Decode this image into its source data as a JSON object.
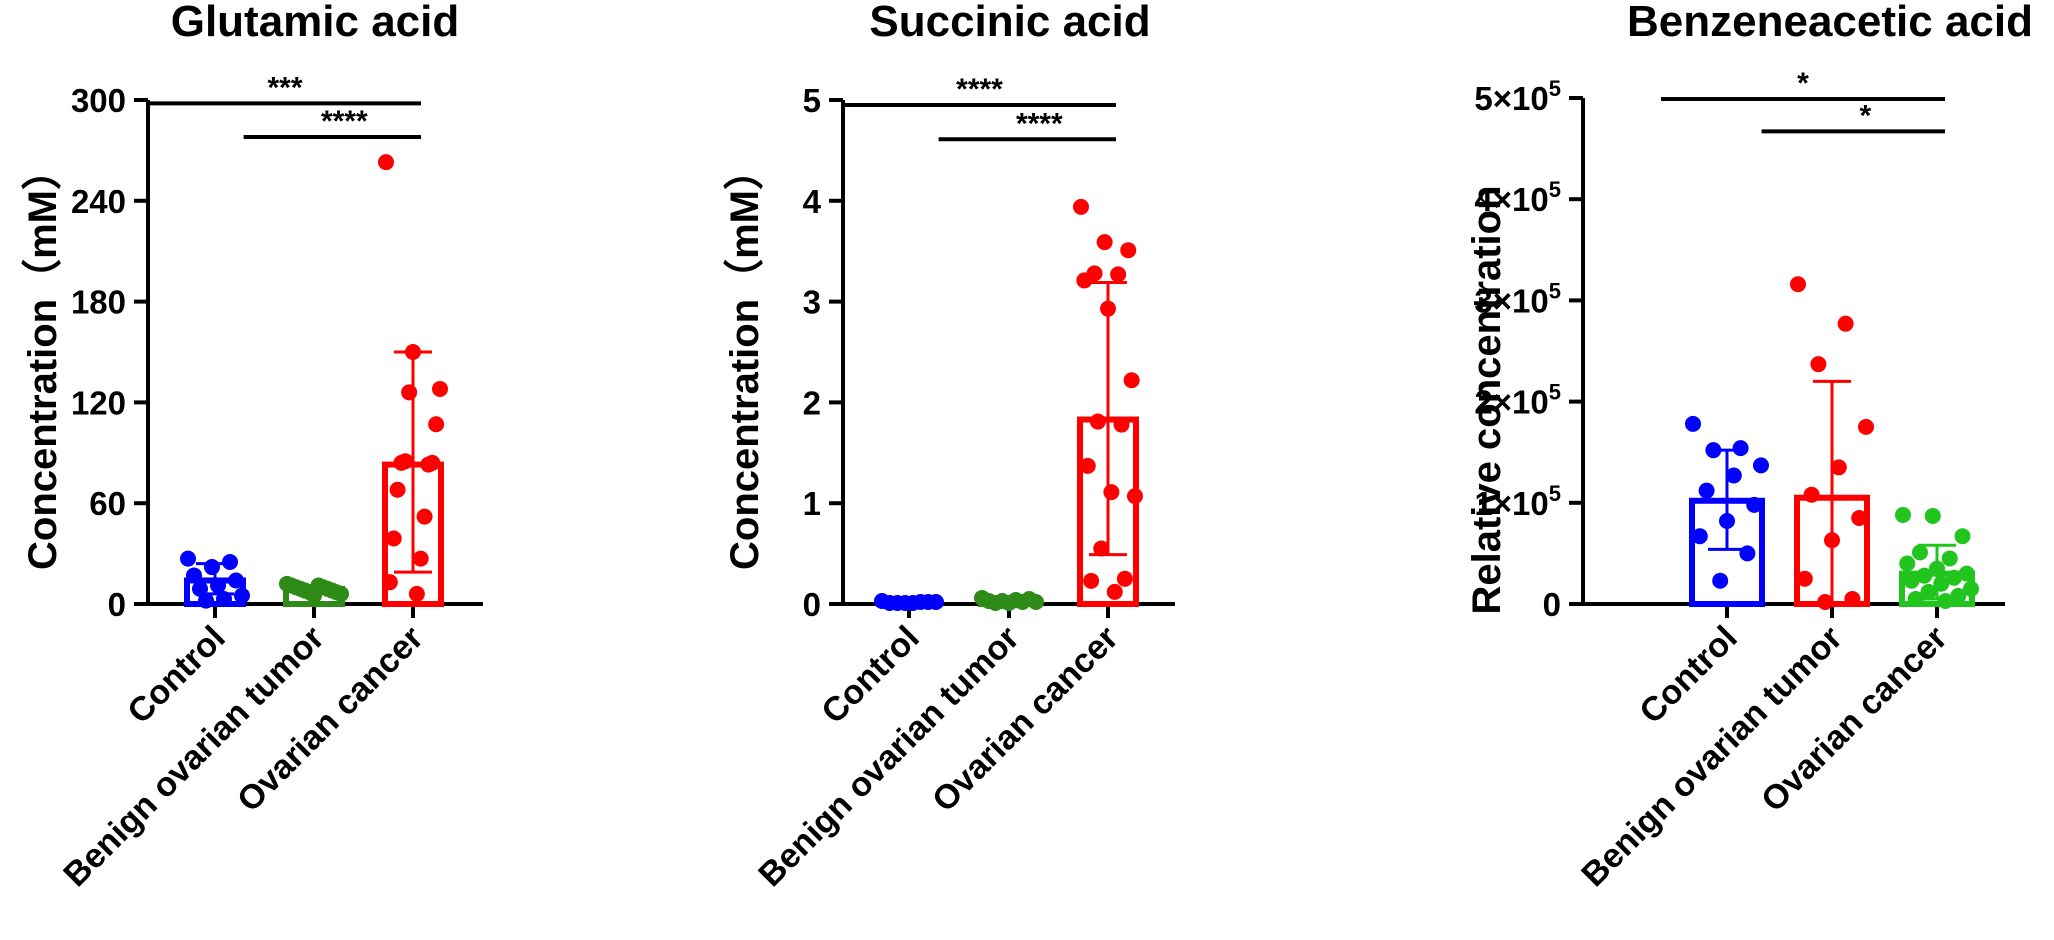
{
  "chart_data": [
    {
      "type": "bar",
      "title": "Glutamic acid",
      "ylabel": "Concentration（mM）",
      "xlabel": "",
      "ylim": [
        0,
        300
      ],
      "yticks": [
        {
          "value": 0,
          "label": "0"
        },
        {
          "value": 60,
          "label": "60"
        },
        {
          "value": 120,
          "label": "120"
        },
        {
          "value": 180,
          "label": "180"
        },
        {
          "value": 240,
          "label": "240"
        },
        {
          "value": 300,
          "label": "300"
        }
      ],
      "categories": [
        "Control",
        "Benign ovarian tumor",
        "Ovarian cancer"
      ],
      "colors": [
        "#0000ff",
        "#2e8b18",
        "#ff0000"
      ],
      "bar_style": [
        "outline",
        "outline",
        "outline"
      ],
      "means": [
        14,
        9,
        83
      ],
      "sd_upper": [
        24,
        11,
        150
      ],
      "sd_lower": [
        6,
        7,
        19
      ],
      "points": [
        [
          27,
          25,
          22,
          17,
          14,
          11,
          9,
          5,
          3,
          2
        ],
        [
          12,
          11,
          11,
          10,
          10,
          9,
          9,
          8,
          8,
          7,
          7,
          6,
          5
        ],
        [
          263,
          150,
          128,
          126,
          107,
          85,
          84,
          84,
          83,
          68,
          52,
          39,
          27,
          13,
          6
        ]
      ],
      "significance": [
        {
          "from": 0,
          "to": 2,
          "y": 298,
          "label": "***"
        },
        {
          "from": 1,
          "to": 2,
          "y": 278,
          "label": "****"
        }
      ]
    },
    {
      "type": "bar",
      "title": "Succinic acid",
      "ylabel": "Concentration（mM）",
      "xlabel": "",
      "ylim": [
        0,
        5
      ],
      "yticks": [
        {
          "value": 0,
          "label": "0"
        },
        {
          "value": 1,
          "label": "1"
        },
        {
          "value": 2,
          "label": "2"
        },
        {
          "value": 3,
          "label": "3"
        },
        {
          "value": 4,
          "label": "4"
        },
        {
          "value": 5,
          "label": "5"
        }
      ],
      "categories": [
        "Control",
        "Benign ovarian tumor",
        "Ovarian cancer"
      ],
      "colors": [
        "#0000ff",
        "#2e8b18",
        "#ff0000"
      ],
      "bar_style": [
        "outline",
        "outline",
        "outline"
      ],
      "means": [
        0.02,
        0.03,
        1.83
      ],
      "sd_upper": [
        0.03,
        0.05,
        3.19
      ],
      "sd_lower": [
        0.01,
        0.01,
        0.49
      ],
      "points": [
        [
          0.03,
          0.02,
          0.02,
          0.02,
          0.01,
          0.01,
          0.01,
          0.01
        ],
        [
          0.06,
          0.05,
          0.04,
          0.03,
          0.03,
          0.02,
          0.02,
          0.01,
          0.01
        ],
        [
          3.94,
          3.59,
          3.51,
          3.28,
          3.27,
          3.21,
          2.93,
          2.22,
          1.81,
          1.78,
          1.37,
          1.11,
          1.07,
          0.55,
          0.25,
          0.23,
          0.12
        ]
      ],
      "significance": [
        {
          "from": 0,
          "to": 2,
          "y": 4.95,
          "label": "****"
        },
        {
          "from": 1,
          "to": 2,
          "y": 4.61,
          "label": "****"
        }
      ]
    },
    {
      "type": "bar",
      "title": "Benzeneacetic acid",
      "ylabel": "Relative concentration",
      "xlabel": "",
      "ylim": [
        0,
        500000
      ],
      "yticks": [
        {
          "value": 0,
          "label": "0",
          "sup": ""
        },
        {
          "value": 100000,
          "label": "1×10",
          "sup": "5"
        },
        {
          "value": 200000,
          "label": "2×10",
          "sup": "5"
        },
        {
          "value": 300000,
          "label": "3×10",
          "sup": "5"
        },
        {
          "value": 400000,
          "label": "4×10",
          "sup": "5"
        },
        {
          "value": 500000,
          "label": "5×10",
          "sup": "5"
        }
      ],
      "categories": [
        "Control",
        "Benign ovarian tumor",
        "Ovarian cancer"
      ],
      "colors": [
        "#0000ff",
        "#ff0000",
        "#22c41e"
      ],
      "bar_style": [
        "outline",
        "outline",
        "outline"
      ],
      "means": [
        102000,
        105000,
        30000
      ],
      "sd_upper": [
        152000,
        220000,
        58000
      ],
      "sd_lower": [
        54000,
        0,
        5000
      ],
      "points": [
        [
          178000,
          154000,
          152000,
          137000,
          127000,
          112000,
          98000,
          82000,
          67000,
          50000,
          23000
        ],
        [
          316000,
          277000,
          237000,
          175000,
          135000,
          108000,
          85000,
          63000,
          25000,
          5000,
          2000
        ],
        [
          88000,
          87000,
          67000,
          51000,
          45000,
          40000,
          35000,
          30000,
          28000,
          26000,
          23000,
          20000,
          15000,
          12000,
          8000,
          5000,
          3000
        ]
      ],
      "significance": [
        {
          "from": 0,
          "to": 2,
          "y": 499000,
          "label": "*"
        },
        {
          "from": 1,
          "to": 2,
          "y": 467000,
          "label": "*"
        }
      ]
    }
  ]
}
